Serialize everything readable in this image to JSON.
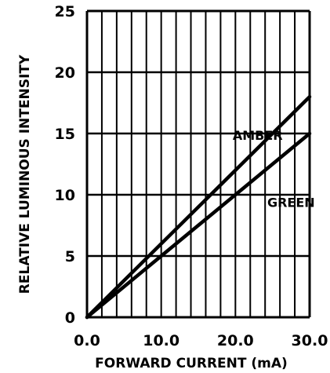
{
  "chart_data": {
    "type": "line",
    "title": "",
    "xlabel": "FORWARD CURRENT (mA)",
    "ylabel": "RELATIVE LUMINOUS INTENSITY",
    "xlim": [
      0,
      30
    ],
    "ylim": [
      0,
      25
    ],
    "x_ticks": [
      0,
      10,
      20,
      30
    ],
    "x_tick_labels": [
      "0.0",
      "10.0",
      "20.0",
      "30.0"
    ],
    "y_ticks": [
      0,
      5,
      10,
      15,
      20,
      25
    ],
    "y_tick_labels": [
      "0",
      "5",
      "10",
      "15",
      "20",
      "25"
    ],
    "x_gridlines": [
      0,
      2,
      4,
      6,
      8,
      10,
      12,
      14,
      16,
      18,
      20,
      22,
      24,
      26,
      28,
      30
    ],
    "y_gridlines": [
      0,
      5,
      10,
      15,
      20,
      25
    ],
    "grid": true,
    "series": [
      {
        "name": "AMBER",
        "x": [
          0,
          30
        ],
        "y": [
          0,
          18
        ],
        "label_at": [
          23,
          14.5
        ]
      },
      {
        "name": "GREEN",
        "x": [
          0,
          30
        ],
        "y": [
          0,
          15
        ],
        "label_at": [
          27.5,
          9
        ]
      }
    ]
  },
  "colors": {
    "line": "#000000",
    "background": "#ffffff"
  }
}
